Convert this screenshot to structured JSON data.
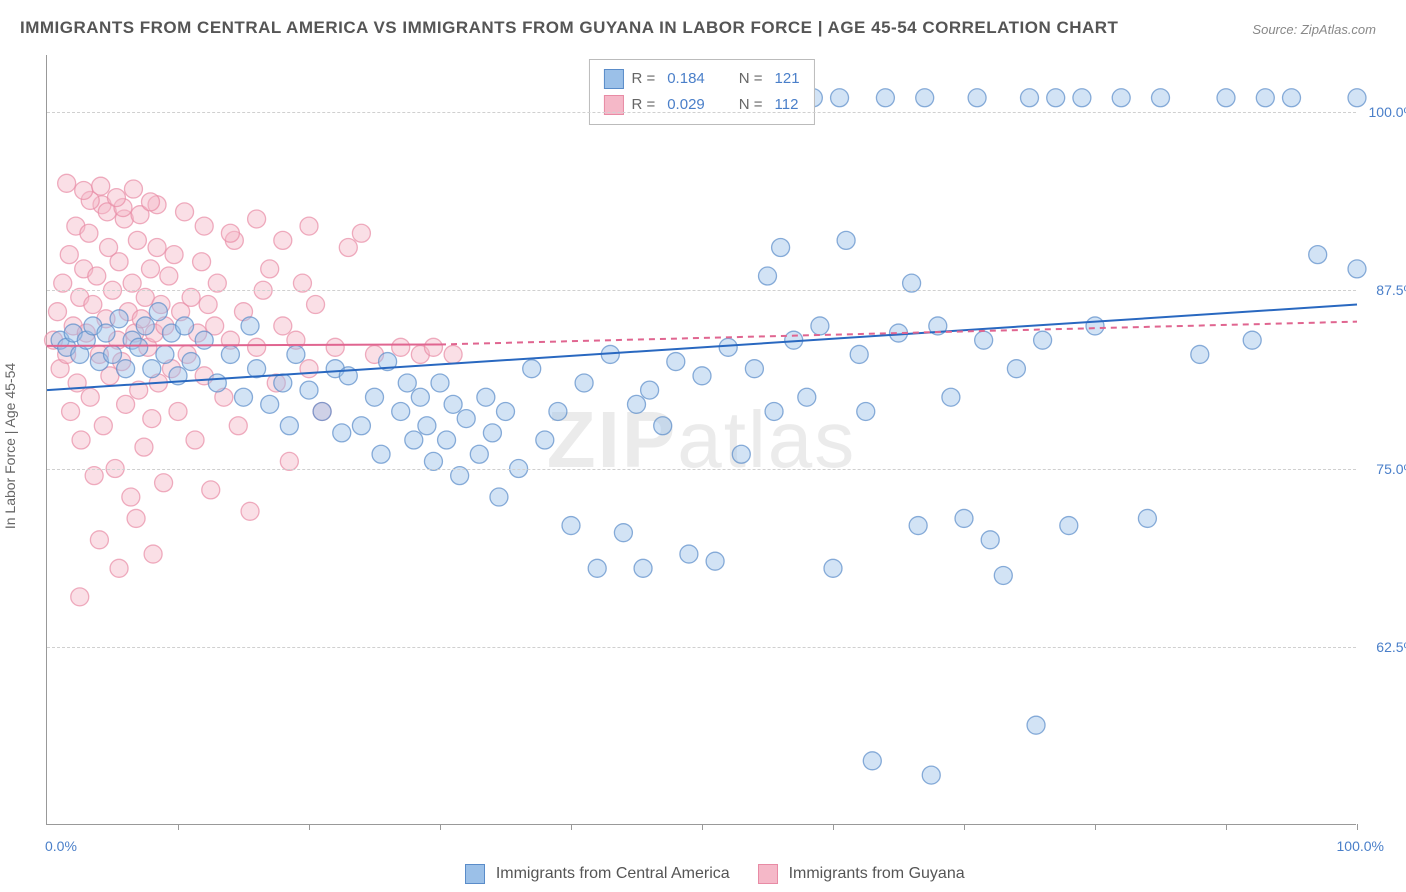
{
  "title": "IMMIGRANTS FROM CENTRAL AMERICA VS IMMIGRANTS FROM GUYANA IN LABOR FORCE | AGE 45-54 CORRELATION CHART",
  "source_label": "Source:",
  "source_name": "ZipAtlas.com",
  "y_axis_label": "In Labor Force | Age 45-54",
  "watermark": "ZIPatlas",
  "legend": {
    "series1": {
      "r_value": "0.184",
      "n_value": "121",
      "r_label": "R =",
      "n_label": "N ="
    },
    "series2": {
      "r_value": "0.029",
      "n_value": "112",
      "r_label": "R =",
      "n_label": "N ="
    }
  },
  "bottom_legend": {
    "series1_label": "Immigrants from Central America",
    "series2_label": "Immigrants from Guyana"
  },
  "axis": {
    "x_min_label": "0.0%",
    "x_max_label": "100.0%",
    "y_ticks": [
      {
        "value": 62.5,
        "label": "62.5%"
      },
      {
        "value": 75.0,
        "label": "75.0%"
      },
      {
        "value": 87.5,
        "label": "87.5%"
      },
      {
        "value": 100.0,
        "label": "100.0%"
      }
    ],
    "x_tick_positions": [
      10,
      20,
      30,
      40,
      50,
      60,
      70,
      80,
      90,
      100
    ],
    "xlim": [
      0,
      100
    ],
    "ylim": [
      50,
      104
    ]
  },
  "styling": {
    "background_color": "#ffffff",
    "grid_color": "#d0d0d0",
    "axis_color": "#999999",
    "tick_label_color": "#4a7fc9",
    "title_color": "#555555",
    "title_fontsize": 17,
    "label_fontsize": 14,
    "marker_radius": 9,
    "marker_opacity": 0.45,
    "marker_stroke_opacity": 0.7,
    "line_width": 2
  },
  "series1": {
    "name": "Immigrants from Central America",
    "fill_color": "#9bc0e8",
    "stroke_color": "#5a8cc9",
    "line_color": "#2968c0",
    "trend_line": {
      "x1": 0,
      "y1": 80.5,
      "x2": 100,
      "y2": 86.5
    },
    "points": [
      [
        1,
        84
      ],
      [
        1.5,
        83.5
      ],
      [
        2,
        84.5
      ],
      [
        2.5,
        83
      ],
      [
        3,
        84
      ],
      [
        3.5,
        85
      ],
      [
        4,
        82.5
      ],
      [
        4.5,
        84.5
      ],
      [
        5,
        83
      ],
      [
        5.5,
        85.5
      ],
      [
        6,
        82
      ],
      [
        6.5,
        84
      ],
      [
        7,
        83.5
      ],
      [
        7.5,
        85
      ],
      [
        8,
        82
      ],
      [
        8.5,
        86
      ],
      [
        9,
        83
      ],
      [
        9.5,
        84.5
      ],
      [
        10,
        81.5
      ],
      [
        10.5,
        85
      ],
      [
        11,
        82.5
      ],
      [
        12,
        84
      ],
      [
        13,
        81
      ],
      [
        14,
        83
      ],
      [
        15,
        80
      ],
      [
        15.5,
        85
      ],
      [
        16,
        82
      ],
      [
        17,
        79.5
      ],
      [
        18,
        81
      ],
      [
        18.5,
        78
      ],
      [
        19,
        83
      ],
      [
        20,
        80.5
      ],
      [
        21,
        79
      ],
      [
        22,
        82
      ],
      [
        22.5,
        77.5
      ],
      [
        23,
        81.5
      ],
      [
        24,
        78
      ],
      [
        25,
        80
      ],
      [
        25.5,
        76
      ],
      [
        26,
        82.5
      ],
      [
        27,
        79
      ],
      [
        27.5,
        81
      ],
      [
        28,
        77
      ],
      [
        28.5,
        80
      ],
      [
        29,
        78
      ],
      [
        29.5,
        75.5
      ],
      [
        30,
        81
      ],
      [
        30.5,
        77
      ],
      [
        31,
        79.5
      ],
      [
        31.5,
        74.5
      ],
      [
        32,
        78.5
      ],
      [
        33,
        76
      ],
      [
        33.5,
        80
      ],
      [
        34,
        77.5
      ],
      [
        34.5,
        73
      ],
      [
        35,
        79
      ],
      [
        36,
        75
      ],
      [
        37,
        82
      ],
      [
        38,
        77
      ],
      [
        39,
        79
      ],
      [
        40,
        71
      ],
      [
        41,
        81
      ],
      [
        42,
        68
      ],
      [
        43,
        83
      ],
      [
        44,
        70.5
      ],
      [
        45,
        79.5
      ],
      [
        45.5,
        68
      ],
      [
        46,
        80.5
      ],
      [
        47,
        78
      ],
      [
        48,
        82.5
      ],
      [
        49,
        69
      ],
      [
        50,
        81.5
      ],
      [
        51,
        68.5
      ],
      [
        52,
        83.5
      ],
      [
        53,
        76
      ],
      [
        54,
        82
      ],
      [
        55,
        88.5
      ],
      [
        55.5,
        79
      ],
      [
        56,
        90.5
      ],
      [
        57,
        84
      ],
      [
        58,
        80
      ],
      [
        58.5,
        101
      ],
      [
        59,
        85
      ],
      [
        60,
        68
      ],
      [
        60.5,
        101
      ],
      [
        61,
        91
      ],
      [
        62,
        83
      ],
      [
        62.5,
        79
      ],
      [
        63,
        54.5
      ],
      [
        64,
        101
      ],
      [
        65,
        84.5
      ],
      [
        66,
        88
      ],
      [
        66.5,
        71
      ],
      [
        67,
        101
      ],
      [
        67.5,
        53.5
      ],
      [
        68,
        85
      ],
      [
        69,
        80
      ],
      [
        70,
        71.5
      ],
      [
        71,
        101
      ],
      [
        71.5,
        84
      ],
      [
        72,
        70
      ],
      [
        73,
        67.5
      ],
      [
        74,
        82
      ],
      [
        75,
        101
      ],
      [
        75.5,
        57
      ],
      [
        76,
        84
      ],
      [
        77,
        101
      ],
      [
        78,
        71
      ],
      [
        79,
        101
      ],
      [
        80,
        85
      ],
      [
        82,
        101
      ],
      [
        84,
        71.5
      ],
      [
        85,
        101
      ],
      [
        88,
        83
      ],
      [
        90,
        101
      ],
      [
        92,
        84
      ],
      [
        93,
        101
      ],
      [
        95,
        101
      ],
      [
        97,
        90
      ],
      [
        100,
        101
      ],
      [
        100,
        89
      ]
    ]
  },
  "series2": {
    "name": "Immigrants from Guyana",
    "fill_color": "#f5b8c8",
    "stroke_color": "#e88ba5",
    "line_color": "#e06590",
    "trend_line_solid": {
      "x1": 0,
      "y1": 83.6,
      "x2": 30,
      "y2": 83.7
    },
    "trend_line_dashed": {
      "x1": 30,
      "y1": 83.7,
      "x2": 100,
      "y2": 85.3
    },
    "points": [
      [
        0.5,
        84
      ],
      [
        0.8,
        86
      ],
      [
        1,
        82
      ],
      [
        1.2,
        88
      ],
      [
        1.5,
        83
      ],
      [
        1.7,
        90
      ],
      [
        1.8,
        79
      ],
      [
        2,
        85
      ],
      [
        2.2,
        92
      ],
      [
        2.3,
        81
      ],
      [
        2.5,
        87
      ],
      [
        2.6,
        77
      ],
      [
        2.8,
        89
      ],
      [
        3,
        84.5
      ],
      [
        3.2,
        91.5
      ],
      [
        3.3,
        80
      ],
      [
        3.5,
        86.5
      ],
      [
        3.6,
        74.5
      ],
      [
        3.8,
        88.5
      ],
      [
        4,
        83
      ],
      [
        4.2,
        93.5
      ],
      [
        4.3,
        78
      ],
      [
        4.5,
        85.5
      ],
      [
        4.7,
        90.5
      ],
      [
        4.8,
        81.5
      ],
      [
        5,
        87.5
      ],
      [
        5.2,
        75
      ],
      [
        5.4,
        84
      ],
      [
        5.5,
        89.5
      ],
      [
        5.7,
        82.5
      ],
      [
        5.9,
        92.5
      ],
      [
        6,
        79.5
      ],
      [
        6.2,
        86
      ],
      [
        6.4,
        73
      ],
      [
        6.5,
        88
      ],
      [
        6.7,
        84.5
      ],
      [
        6.9,
        91
      ],
      [
        7,
        80.5
      ],
      [
        7.2,
        85.5
      ],
      [
        7.4,
        76.5
      ],
      [
        7.5,
        87
      ],
      [
        7.7,
        83.5
      ],
      [
        7.9,
        89
      ],
      [
        8,
        78.5
      ],
      [
        8.2,
        84.5
      ],
      [
        8.4,
        90.5
      ],
      [
        8.5,
        81
      ],
      [
        8.7,
        86.5
      ],
      [
        8.9,
        74
      ],
      [
        9,
        85
      ],
      [
        9.3,
        88.5
      ],
      [
        9.5,
        82
      ],
      [
        9.7,
        90
      ],
      [
        10,
        79
      ],
      [
        10.2,
        86
      ],
      [
        10.5,
        93
      ],
      [
        10.7,
        83
      ],
      [
        11,
        87
      ],
      [
        11.3,
        77
      ],
      [
        11.5,
        84.5
      ],
      [
        11.8,
        89.5
      ],
      [
        12,
        81.5
      ],
      [
        12.3,
        86.5
      ],
      [
        12.5,
        73.5
      ],
      [
        12.8,
        85
      ],
      [
        13,
        88
      ],
      [
        13.5,
        80
      ],
      [
        14,
        84
      ],
      [
        14.3,
        91
      ],
      [
        14.6,
        78
      ],
      [
        15,
        86
      ],
      [
        15.5,
        72
      ],
      [
        16,
        83.5
      ],
      [
        16.5,
        87.5
      ],
      [
        17,
        89
      ],
      [
        17.5,
        81
      ],
      [
        18,
        85
      ],
      [
        18.5,
        75.5
      ],
      [
        19,
        84
      ],
      [
        19.5,
        88
      ],
      [
        20,
        82
      ],
      [
        20.5,
        86.5
      ],
      [
        21,
        79
      ],
      [
        22,
        83.5
      ],
      [
        23,
        90.5
      ],
      [
        25,
        83
      ],
      [
        27,
        83.5
      ],
      [
        28.5,
        83
      ],
      [
        29.5,
        83.5
      ],
      [
        31,
        83
      ],
      [
        2.5,
        66
      ],
      [
        4,
        70
      ],
      [
        5.5,
        68
      ],
      [
        6.8,
        71.5
      ],
      [
        8.1,
        69
      ],
      [
        3.3,
        93.8
      ],
      [
        4.6,
        93
      ],
      [
        5.8,
        93.3
      ],
      [
        7.1,
        92.8
      ],
      [
        8.4,
        93.5
      ],
      [
        1.5,
        95
      ],
      [
        2.8,
        94.5
      ],
      [
        4.1,
        94.8
      ],
      [
        5.3,
        94
      ],
      [
        6.6,
        94.6
      ],
      [
        7.9,
        93.7
      ],
      [
        12,
        92
      ],
      [
        14,
        91.5
      ],
      [
        16,
        92.5
      ],
      [
        18,
        91
      ],
      [
        20,
        92
      ],
      [
        24,
        91.5
      ]
    ]
  }
}
